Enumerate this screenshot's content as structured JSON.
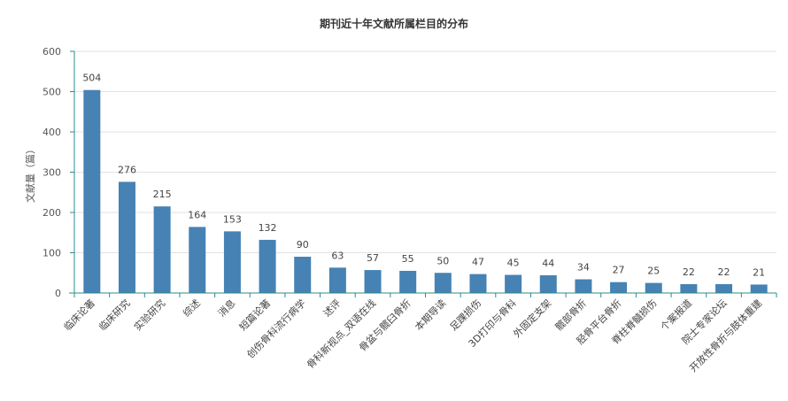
{
  "chart_data": {
    "type": "bar",
    "title": "期刊近十年文献所属栏目的分布",
    "xlabel": "",
    "ylabel": "文献量（篇）",
    "ylim": [
      0,
      600
    ],
    "yticks": [
      0,
      100,
      200,
      300,
      400,
      500,
      600
    ],
    "grid": true,
    "bar_color": "#4682b4",
    "axis_color": "#2e8b8b",
    "categories": [
      "临床论著",
      "临床研究",
      "实验研究",
      "综述",
      "消息",
      "短篇论著",
      "创伤骨科流行病学",
      "述评",
      "骨科新视点_双语在线",
      "骨盆与髋臼骨折",
      "本期导读",
      "足踝损伤",
      "3D打印与骨科",
      "外固定支架",
      "髋部骨折",
      "胫骨平台骨折",
      "脊柱脊髓损伤",
      "个案报道",
      "院士专家论坛",
      "开放性骨折与肢体重建"
    ],
    "values": [
      504,
      276,
      215,
      164,
      153,
      132,
      90,
      63,
      57,
      55,
      50,
      47,
      45,
      44,
      34,
      27,
      25,
      22,
      22,
      21
    ]
  }
}
